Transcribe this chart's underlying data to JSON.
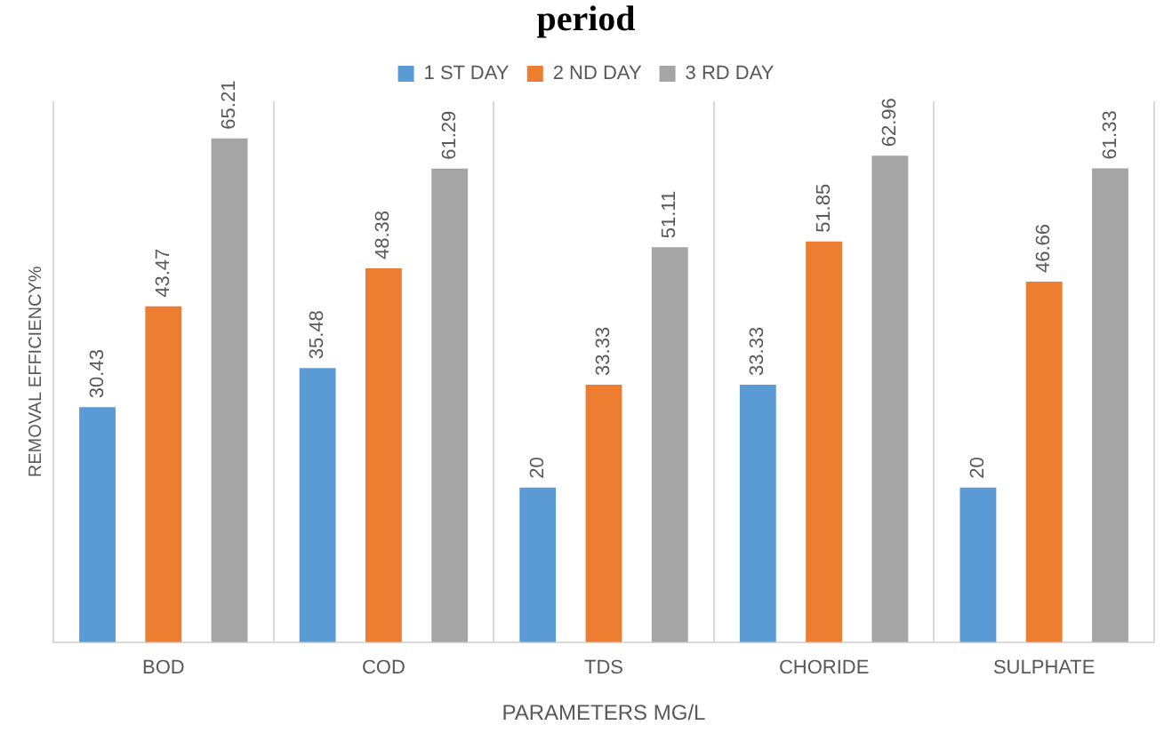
{
  "chart_data": {
    "type": "bar",
    "title": "period",
    "xlabel": "PARAMETERS MG/L",
    "ylabel": "REMOVAL EFFICIENCY%",
    "categories": [
      "BOD",
      "COD",
      "TDS",
      "CHORIDE",
      "SULPHATE"
    ],
    "series": [
      {
        "name": "1 ST DAY",
        "color": "#5b9bd5",
        "values": [
          30.43,
          35.48,
          20,
          33.33,
          20
        ]
      },
      {
        "name": "2 ND DAY",
        "color": "#ed7d31",
        "values": [
          43.47,
          48.38,
          33.33,
          51.85,
          46.66
        ]
      },
      {
        "name": "3 RD DAY",
        "color": "#a5a5a5",
        "values": [
          65.21,
          61.29,
          51.11,
          62.96,
          61.33
        ]
      }
    ],
    "ylim": [
      0,
      70
    ],
    "tick_labels": "x",
    "grid": "x",
    "legend": "top",
    "data_labels": true
  }
}
